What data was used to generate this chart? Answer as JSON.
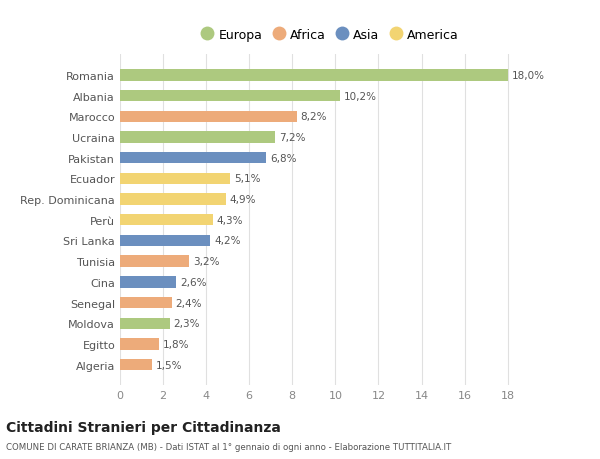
{
  "categories": [
    "Algeria",
    "Egitto",
    "Moldova",
    "Senegal",
    "Cina",
    "Tunisia",
    "Sri Lanka",
    "Perù",
    "Rep. Dominicana",
    "Ecuador",
    "Pakistan",
    "Ucraina",
    "Marocco",
    "Albania",
    "Romania"
  ],
  "values": [
    1.5,
    1.8,
    2.3,
    2.4,
    2.6,
    3.2,
    4.2,
    4.3,
    4.9,
    5.1,
    6.8,
    7.2,
    8.2,
    10.2,
    18.0
  ],
  "labels": [
    "1,5%",
    "1,8%",
    "2,3%",
    "2,4%",
    "2,6%",
    "3,2%",
    "4,2%",
    "4,3%",
    "4,9%",
    "5,1%",
    "6,8%",
    "7,2%",
    "8,2%",
    "10,2%",
    "18,0%"
  ],
  "continents": [
    "Africa",
    "Africa",
    "Europa",
    "Africa",
    "Asia",
    "Africa",
    "Asia",
    "America",
    "America",
    "America",
    "Asia",
    "Europa",
    "Africa",
    "Europa",
    "Europa"
  ],
  "colors": {
    "Europa": "#adc97f",
    "Africa": "#edab7a",
    "Asia": "#6b8fbf",
    "America": "#f2d472"
  },
  "legend_order": [
    "Europa",
    "Africa",
    "Asia",
    "America"
  ],
  "title": "Cittadini Stranieri per Cittadinanza",
  "subtitle": "COMUNE DI CARATE BRIANZA (MB) - Dati ISTAT al 1° gennaio di ogni anno - Elaborazione TUTTITALIA.IT",
  "xlim": [
    0,
    18
  ],
  "xticks": [
    0,
    2,
    4,
    6,
    8,
    10,
    12,
    14,
    16,
    18
  ],
  "background_color": "#ffffff",
  "grid_color": "#e0e0e0",
  "bar_height": 0.55
}
